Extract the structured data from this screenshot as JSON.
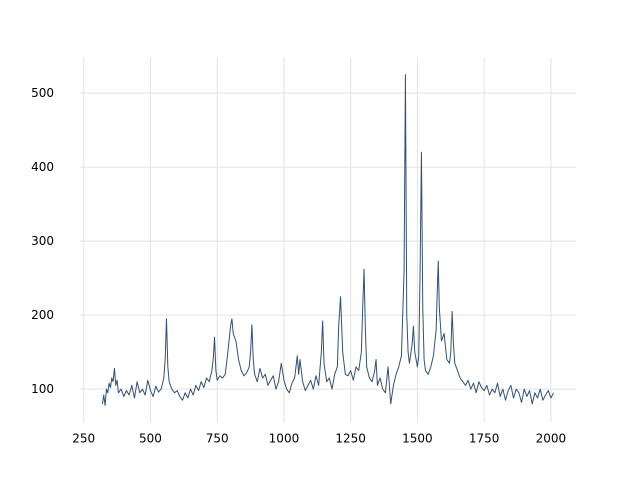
{
  "chart_data": {
    "type": "line",
    "x": [
      320,
      325,
      330,
      335,
      340,
      345,
      350,
      355,
      360,
      365,
      370,
      375,
      380,
      390,
      400,
      410,
      420,
      430,
      440,
      450,
      460,
      470,
      480,
      490,
      500,
      510,
      520,
      530,
      540,
      550,
      555,
      560,
      565,
      570,
      580,
      590,
      600,
      610,
      620,
      630,
      640,
      650,
      660,
      670,
      680,
      690,
      700,
      710,
      720,
      730,
      735,
      740,
      745,
      750,
      760,
      770,
      780,
      790,
      800,
      805,
      810,
      820,
      830,
      840,
      850,
      860,
      870,
      875,
      880,
      885,
      890,
      900,
      910,
      920,
      930,
      940,
      950,
      960,
      970,
      980,
      990,
      1000,
      1010,
      1020,
      1030,
      1040,
      1050,
      1055,
      1060,
      1070,
      1080,
      1090,
      1100,
      1110,
      1120,
      1130,
      1140,
      1145,
      1150,
      1160,
      1170,
      1180,
      1190,
      1200,
      1205,
      1212,
      1220,
      1230,
      1240,
      1250,
      1260,
      1270,
      1280,
      1290,
      1295,
      1300,
      1305,
      1310,
      1320,
      1330,
      1340,
      1345,
      1350,
      1360,
      1370,
      1380,
      1390,
      1400,
      1410,
      1420,
      1430,
      1440,
      1450,
      1455,
      1460,
      1465,
      1470,
      1480,
      1485,
      1490,
      1500,
      1505,
      1510,
      1515,
      1520,
      1525,
      1530,
      1540,
      1550,
      1560,
      1570,
      1575,
      1578,
      1582,
      1590,
      1600,
      1610,
      1620,
      1625,
      1630,
      1635,
      1640,
      1650,
      1660,
      1670,
      1680,
      1690,
      1700,
      1710,
      1720,
      1730,
      1740,
      1750,
      1760,
      1770,
      1780,
      1790,
      1800,
      1810,
      1820,
      1830,
      1840,
      1850,
      1860,
      1870,
      1880,
      1890,
      1900,
      1910,
      1920,
      1930,
      1940,
      1950,
      1960,
      1970,
      1980,
      1990,
      2000,
      2010
    ],
    "series": [
      {
        "color": "#34506f",
        "values": [
          80,
          92,
          78,
          100,
          95,
          108,
          102,
          115,
          110,
          128,
          105,
          112,
          95,
          100,
          90,
          98,
          92,
          105,
          88,
          110,
          95,
          100,
          92,
          112,
          98,
          90,
          104,
          96,
          100,
          115,
          140,
          195,
          130,
          110,
          100,
          95,
          98,
          90,
          85,
          95,
          88,
          100,
          92,
          105,
          98,
          110,
          102,
          115,
          110,
          125,
          140,
          170,
          125,
          112,
          118,
          115,
          120,
          150,
          185,
          195,
          175,
          165,
          140,
          125,
          118,
          122,
          130,
          150,
          187,
          140,
          120,
          110,
          128,
          115,
          120,
          105,
          112,
          118,
          100,
          110,
          135,
          112,
          100,
          95,
          108,
          115,
          145,
          120,
          140,
          110,
          98,
          105,
          112,
          100,
          118,
          105,
          150,
          192,
          135,
          110,
          115,
          100,
          120,
          130,
          185,
          225,
          150,
          120,
          118,
          125,
          112,
          130,
          125,
          150,
          210,
          262,
          180,
          130,
          115,
          110,
          125,
          140,
          105,
          115,
          100,
          95,
          130,
          80,
          105,
          120,
          130,
          145,
          260,
          525,
          200,
          150,
          135,
          160,
          185,
          150,
          130,
          145,
          260,
          420,
          210,
          140,
          125,
          120,
          130,
          145,
          180,
          240,
          273,
          210,
          165,
          175,
          140,
          135,
          150,
          205,
          160,
          135,
          125,
          115,
          110,
          105,
          112,
          100,
          108,
          95,
          110,
          102,
          98,
          105,
          92,
          100,
          95,
          108,
          90,
          100,
          85,
          98,
          105,
          88,
          100,
          95,
          82,
          100,
          90,
          98,
          80,
          95,
          88,
          100,
          85,
          92,
          98,
          88,
          95
        ]
      }
    ],
    "xlim": [
      236,
      2094
    ],
    "ylim": [
      55,
      548
    ],
    "xticks": [
      250,
      500,
      750,
      1000,
      1250,
      1500,
      1750,
      2000
    ],
    "yticks": [
      100,
      200,
      300,
      400,
      500
    ],
    "grid": true
  }
}
